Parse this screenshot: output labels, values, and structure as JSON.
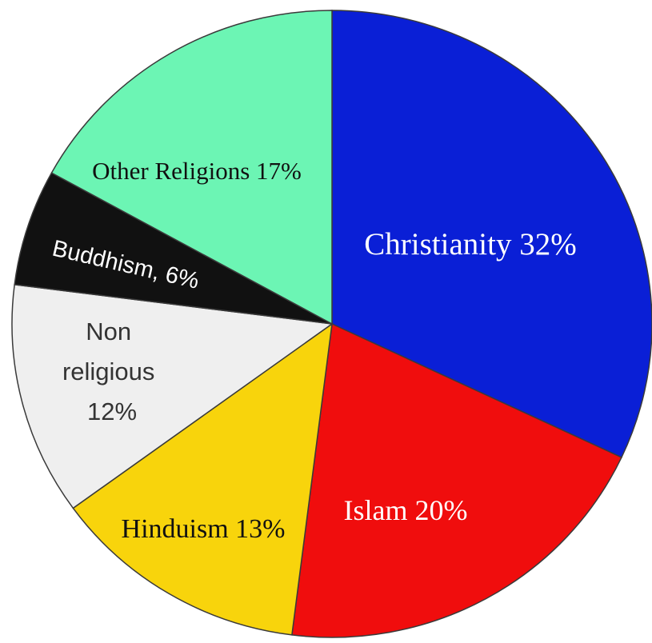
{
  "chart_data": {
    "type": "pie",
    "slices": [
      {
        "label": "Christianity",
        "value": 32,
        "color": "#0a1fd6",
        "text": "Christianity  32%",
        "text_color": "#ffffff"
      },
      {
        "label": "Islam",
        "value": 20,
        "color": "#f00d0d",
        "text": "Islam  20%",
        "text_color": "#ffffff"
      },
      {
        "label": "Hinduism",
        "value": 13,
        "color": "#f8d40c",
        "text": "Hinduism 13%",
        "text_color": "#111111"
      },
      {
        "label": "Non religious",
        "value": 12,
        "color": "#efefef",
        "text_lines": [
          "Non",
          "religious",
          "12%"
        ],
        "text_color": "#333333"
      },
      {
        "label": "Buddhism",
        "value": 6,
        "color": "#111111",
        "text": "Buddhism, 6%",
        "text_color": "#ffffff"
      },
      {
        "label": "Other Religions",
        "value": 17,
        "color": "#6cf5b4",
        "text": "Other Religions 17%",
        "text_color": "#111111"
      }
    ]
  }
}
